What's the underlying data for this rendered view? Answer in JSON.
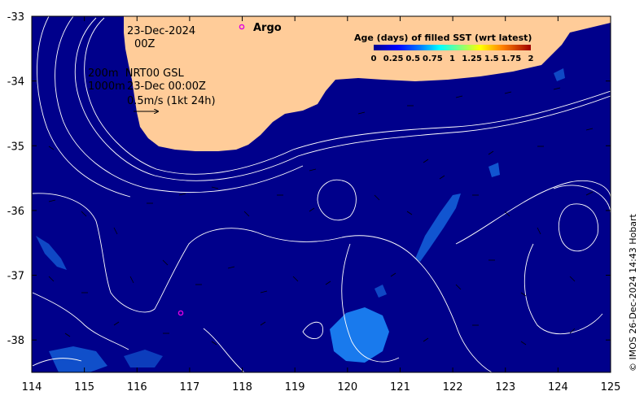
{
  "map": {
    "date_line1": "23-Dec-2024",
    "date_line2": "00Z",
    "legend_line1": "200m  NRT00 GSL",
    "legend_line2a": "1000m",
    "legend_line2b": "23-Dec 00:00Z",
    "vector_scale": "0.5m/s (1kt 24h)",
    "argo_label": "Argo",
    "colorbar_title": "Age (days) of filled SST (wrt latest)",
    "colorbar_ticks": [
      "0",
      "0.25",
      "0.5",
      "0.75",
      "1",
      "1.25",
      "1.5",
      "1.75",
      "2"
    ],
    "credit": "© IMOS 26-Dec-2024 14:43 Hobart",
    "x_ticks": [
      "114",
      "115",
      "116",
      "117",
      "118",
      "119",
      "120",
      "121",
      "122",
      "123",
      "124",
      "125"
    ],
    "y_ticks": [
      "-33",
      "-34",
      "-35",
      "-36",
      "-37",
      "-38"
    ],
    "colors": {
      "ocean": "#00008b",
      "land": "#ffcc99",
      "contour": "#ffffff",
      "argo_marker": "#e000e0",
      "filled_sst": "#1e90ff"
    }
  },
  "chart_data": {
    "type": "heatmap",
    "title": "Age (days) of filled SST (wrt latest)",
    "xlim": [
      114,
      125
    ],
    "ylim": [
      -38.5,
      -33
    ],
    "colorbar_range": [
      0,
      2
    ],
    "argo_floats": [
      {
        "lon": 118.0,
        "lat": -33.18,
        "label": "Argo"
      },
      {
        "lon": 116.83,
        "lat": -37.6
      }
    ]
  }
}
